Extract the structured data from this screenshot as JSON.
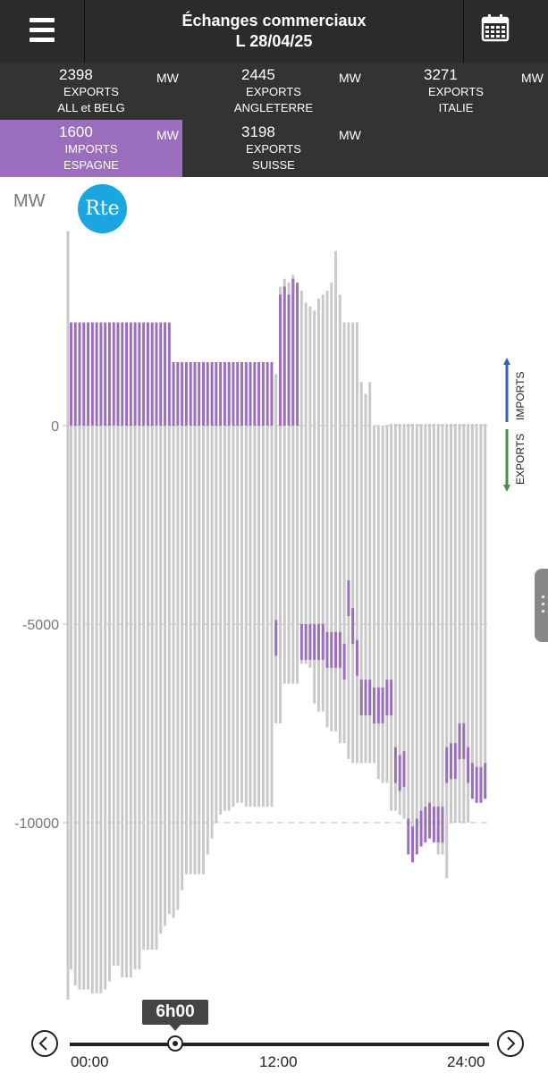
{
  "header": {
    "title_line1": "Échanges commerciaux",
    "title_line2": "L 28/04/25",
    "menu_icon": "hamburger-menu-icon",
    "calendar_icon": "calendar-icon"
  },
  "stats": [
    {
      "value": "2398",
      "unit": "MW",
      "label1": "EXPORTS",
      "label2": "ALL et BELG",
      "active": false
    },
    {
      "value": "2445",
      "unit": "MW",
      "label1": "EXPORTS",
      "label2": "ANGLETERRE",
      "active": false
    },
    {
      "value": "3271",
      "unit": "MW",
      "label1": "EXPORTS",
      "label2": "ITALIE",
      "active": false
    },
    {
      "value": "1600",
      "unit": "MW",
      "label1": "IMPORTS",
      "label2": "ESPAGNE",
      "active": true
    },
    {
      "value": "3198",
      "unit": "MW",
      "label1": "EXPORTS",
      "label2": "SUISSE",
      "active": false
    }
  ],
  "logo_text": "Rte",
  "time_badge": "6h00",
  "timeline_labels": [
    "00:00",
    "12:00",
    "24:00"
  ],
  "colors": {
    "accent": "#9b6dbd",
    "bar_grey": "#c9c9c9",
    "imports_arrow": "#3a5fc4",
    "exports_arrow": "#4f8a4a",
    "header_bg": "#2b2b2b"
  },
  "chart_data": {
    "type": "bar",
    "ylabel": "MW",
    "yticks": [
      0,
      -5000,
      -10000
    ],
    "ylim": [
      -14800,
      4900
    ],
    "x_range_hours": [
      0,
      24
    ],
    "side_labels": {
      "imports": "IMPORTS",
      "exports": "EXPORTS"
    },
    "interval_hours": 0.25,
    "series": [
      {
        "name": "ESPAGNE",
        "values": [
          2600,
          2600,
          2600,
          2600,
          2600,
          2600,
          2600,
          2600,
          2600,
          2600,
          2600,
          2600,
          2600,
          2600,
          2600,
          2600,
          2600,
          2600,
          2600,
          2600,
          2600,
          2600,
          2600,
          2600,
          1600,
          1600,
          1600,
          1600,
          1600,
          1600,
          1600,
          1600,
          1600,
          1600,
          1600,
          1600,
          1600,
          1600,
          1600,
          1600,
          1600,
          1600,
          1600,
          1600,
          1600,
          1600,
          1600,
          1600,
          -5800,
          3300,
          3500,
          3300,
          3700,
          3600,
          -5900,
          -5900,
          -5900,
          -5900,
          -5900,
          -5900,
          -6100,
          -6100,
          -6100,
          -6100,
          -6400,
          -4800,
          -5500,
          -6300,
          -7300,
          -7300,
          -7300,
          -7500,
          -7500,
          -7500,
          -7300,
          -7300,
          -9000,
          -9200,
          -9100,
          -10800,
          -11000,
          -10800,
          -10600,
          -10500,
          -10400,
          -10500,
          -10500,
          -10500,
          -9000,
          -8900,
          -8900,
          -8400,
          -8400,
          -9000,
          -9400,
          -9500,
          -9500,
          -9400
        ]
      },
      {
        "name": "TOTAL",
        "values": [
          -13700,
          -14100,
          -14200,
          -14200,
          -14200,
          -14300,
          -14300,
          -14300,
          -14200,
          -14000,
          -13600,
          -13600,
          -13900,
          -13900,
          -13900,
          -13700,
          -13700,
          -13200,
          -13200,
          -13200,
          -13200,
          -12800,
          -12600,
          -12300,
          -12400,
          -12200,
          -11700,
          -11300,
          -11300,
          -11300,
          -11300,
          -11300,
          -10800,
          -10400,
          -10000,
          -9800,
          -9700,
          -9700,
          -9600,
          -9500,
          -9500,
          -9600,
          -9600,
          -9600,
          -9600,
          -9600,
          -9600,
          -9600,
          -7500,
          -7500,
          -6500,
          -6500,
          -6500,
          -6500,
          -6000,
          -6000,
          -6100,
          -7000,
          -7200,
          -7200,
          -7600,
          -7700,
          -7700,
          -8000,
          -8000,
          -8400,
          -8500,
          -8500,
          -8500,
          -8500,
          -8500,
          -8500,
          -8900,
          -9000,
          -9000,
          -9700,
          -9700,
          -9800,
          -9900,
          -9900,
          -10100,
          -10300,
          -10100,
          -10300,
          -10300,
          -10300,
          -10800,
          -10800,
          -11400,
          -10000,
          -10000,
          -10000,
          -10000,
          -10000,
          -9400,
          -9400,
          -9400,
          -9400
        ]
      }
    ]
  }
}
